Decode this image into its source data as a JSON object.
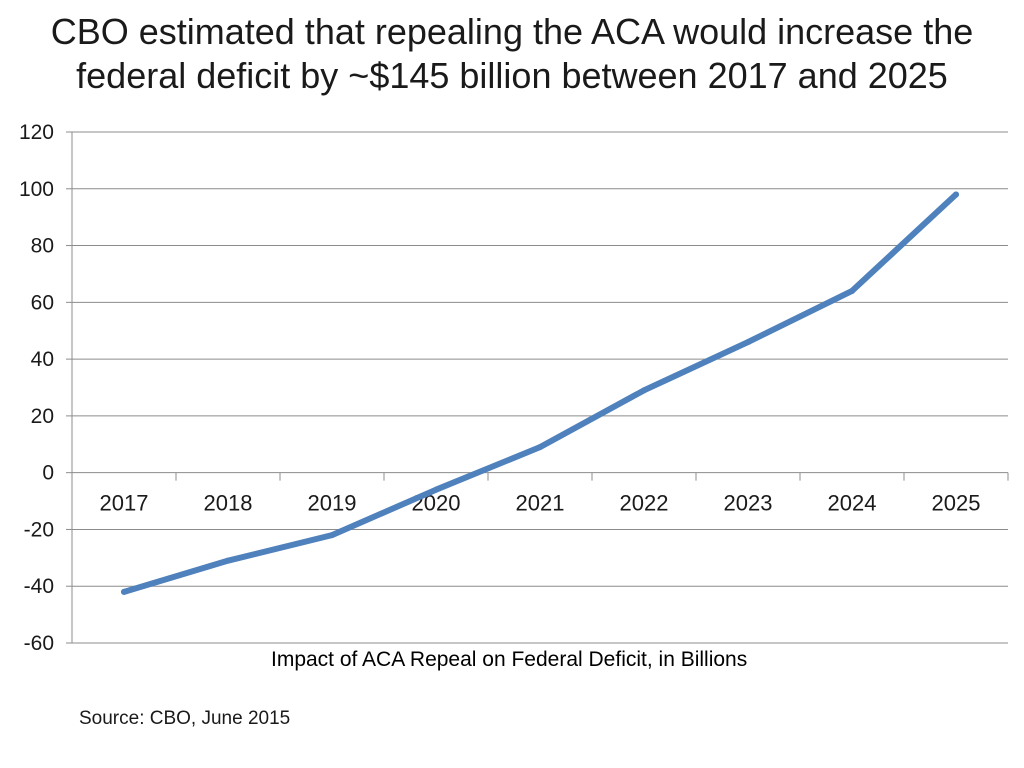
{
  "slide": {
    "title_lines": [
      "CBO estimated that repealing the ACA would increase the",
      "federal deficit by ~$145 billion between 2017 and 2025"
    ],
    "source": "Source: CBO, June 2015"
  },
  "chart_data": {
    "type": "line",
    "title": "",
    "xlabel": "Impact of ACA Repeal on Federal Deficit, in Billions",
    "ylabel": "",
    "categories": [
      "2017",
      "2018",
      "2019",
      "2020",
      "2021",
      "2022",
      "2023",
      "2024",
      "2025"
    ],
    "series": [
      {
        "name": "Impact of ACA Repeal on Federal Deficit, in Billions",
        "values": [
          -42,
          -31,
          -22,
          -6,
          9,
          29,
          46,
          64,
          98
        ]
      }
    ],
    "ylim": [
      -60,
      120
    ],
    "yticks": [
      -60,
      -40,
      -20,
      0,
      20,
      40,
      60,
      80,
      100,
      120
    ],
    "grid": true,
    "legend": "none",
    "line_color": "#4f81bd"
  }
}
